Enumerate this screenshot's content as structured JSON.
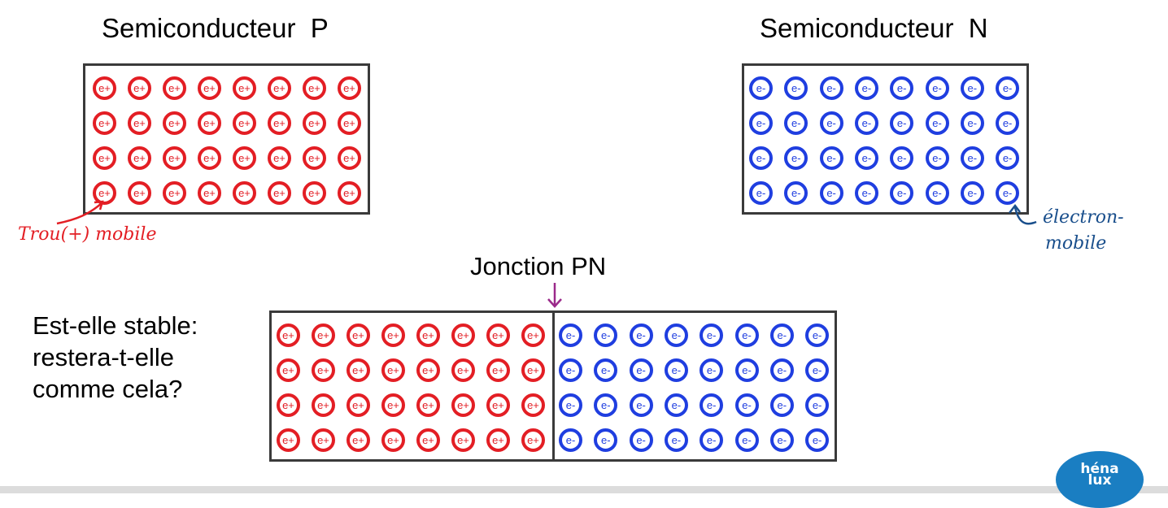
{
  "titles": {
    "p_semiconductor": "Semiconducteur  P",
    "n_semiconductor": "Semiconducteur  N",
    "junction": "Jonction PN"
  },
  "particles": {
    "hole_label": "e+",
    "electron_label": "e-",
    "rows": 4,
    "columns": 8
  },
  "annotations": {
    "hole": "Trou(+) mobile",
    "electron_line1": "électron-",
    "electron_line2": "mobile"
  },
  "question": {
    "line1": "Est-elle stable:",
    "line2": "restera-t-elle",
    "line3": "comme cela?"
  },
  "logo": {
    "line1": "héna",
    "line2": "lux"
  },
  "colors": {
    "hole": "#e31e24",
    "electron": "#1f3ee0",
    "frame": "#3a3a3a",
    "junction_arrow": "#9b2a8a",
    "hole_annotation": "#e31e24",
    "electron_annotation": "#1a4f8c",
    "logo": "#1a7ec2"
  }
}
